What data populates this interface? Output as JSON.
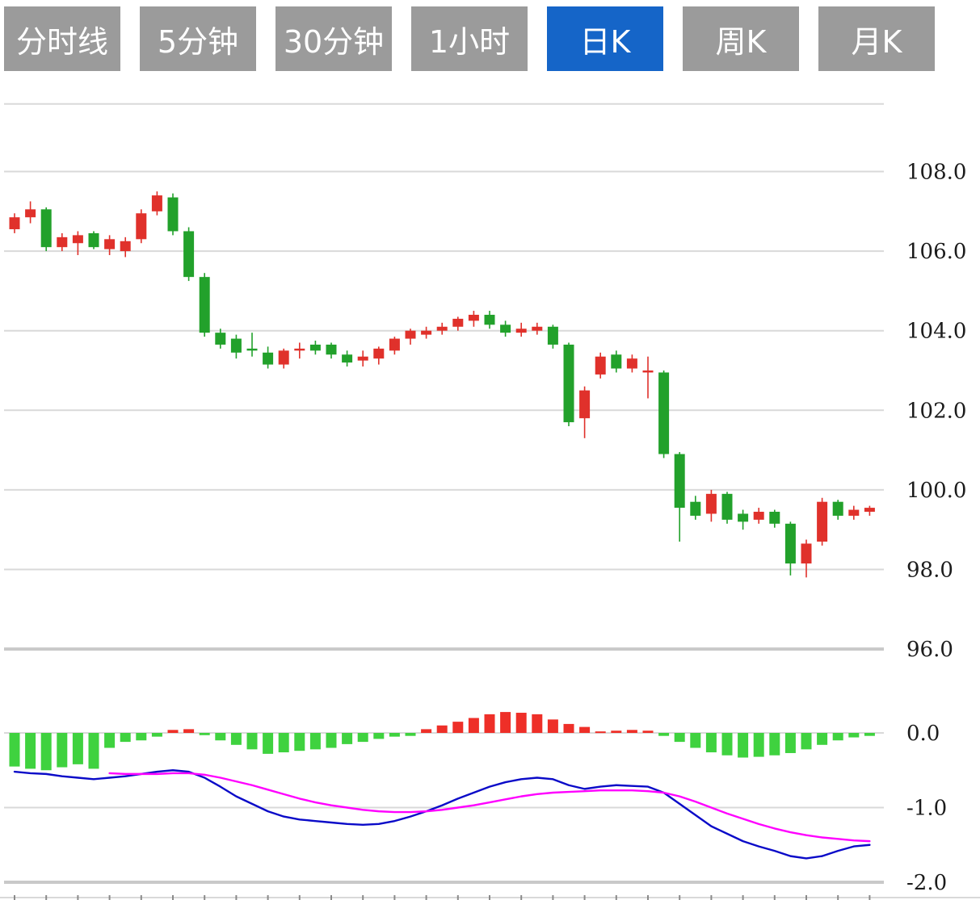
{
  "tabs": [
    {
      "label": "分时线",
      "active": false
    },
    {
      "label": "5分钟",
      "active": false
    },
    {
      "label": "30分钟",
      "active": false
    },
    {
      "label": "1小时",
      "active": false
    },
    {
      "label": "日K",
      "active": true
    },
    {
      "label": "周K",
      "active": false
    },
    {
      "label": "月K",
      "active": false
    }
  ],
  "colors": {
    "background": "#ffffff",
    "tab_bg": "#9b9b9b",
    "tab_active_bg": "#1565c8",
    "tab_text": "#ffffff",
    "candle_up": "#e0312b",
    "candle_down": "#22a12b",
    "hist_up": "#ee2f28",
    "hist_down": "#3fd23f",
    "dif_line": "#0a0ac8",
    "dea_line": "#ff00ff",
    "grid": "#d9d9d9",
    "grid_major": "#c9c9c9",
    "axis_text": "#1b1b1b"
  },
  "chart_data": {
    "type": "candlestick+macd",
    "note": "Chinese convention: red = up candle, green = down candle",
    "price_panel": {
      "yticks": [
        108.0,
        106.0,
        104.0,
        102.0,
        100.0,
        98.0,
        96.0
      ],
      "ylim": [
        95.4,
        109.7
      ],
      "candles_ohlc": [
        [
          106.55,
          106.95,
          106.45,
          106.85
        ],
        [
          106.85,
          107.25,
          106.7,
          107.05
        ],
        [
          107.05,
          107.1,
          106.0,
          106.1
        ],
        [
          106.1,
          106.45,
          106.0,
          106.35
        ],
        [
          106.2,
          106.5,
          105.9,
          106.4
        ],
        [
          106.45,
          106.5,
          106.05,
          106.1
        ],
        [
          106.05,
          106.4,
          105.9,
          106.3
        ],
        [
          106.0,
          106.35,
          105.85,
          106.25
        ],
        [
          106.3,
          107.05,
          106.2,
          106.95
        ],
        [
          107.0,
          107.5,
          106.9,
          107.4
        ],
        [
          107.35,
          107.45,
          106.4,
          106.5
        ],
        [
          106.5,
          106.6,
          105.25,
          105.35
        ],
        [
          105.35,
          105.45,
          103.85,
          103.95
        ],
        [
          103.95,
          104.05,
          103.55,
          103.65
        ],
        [
          103.8,
          103.9,
          103.3,
          103.45
        ],
        [
          103.55,
          103.95,
          103.35,
          103.5
        ],
        [
          103.45,
          103.6,
          103.05,
          103.15
        ],
        [
          103.15,
          103.55,
          103.05,
          103.5
        ],
        [
          103.5,
          103.7,
          103.3,
          103.55
        ],
        [
          103.65,
          103.75,
          103.4,
          103.5
        ],
        [
          103.65,
          103.7,
          103.3,
          103.4
        ],
        [
          103.4,
          103.5,
          103.1,
          103.2
        ],
        [
          103.25,
          103.5,
          103.1,
          103.35
        ],
        [
          103.3,
          103.6,
          103.15,
          103.55
        ],
        [
          103.5,
          103.85,
          103.4,
          103.8
        ],
        [
          103.8,
          104.05,
          103.65,
          104.0
        ],
        [
          103.9,
          104.1,
          103.8,
          104.0
        ],
        [
          104.0,
          104.2,
          103.9,
          104.1
        ],
        [
          104.1,
          104.35,
          104.0,
          104.3
        ],
        [
          104.25,
          104.5,
          104.1,
          104.4
        ],
        [
          104.4,
          104.5,
          104.05,
          104.15
        ],
        [
          104.15,
          104.25,
          103.85,
          103.95
        ],
        [
          103.95,
          104.2,
          103.85,
          104.05
        ],
        [
          104.0,
          104.2,
          103.9,
          104.1
        ],
        [
          104.1,
          104.15,
          103.55,
          103.65
        ],
        [
          103.65,
          103.7,
          101.6,
          101.7
        ],
        [
          101.8,
          102.6,
          101.3,
          102.5
        ],
        [
          102.9,
          103.45,
          102.8,
          103.35
        ],
        [
          103.4,
          103.5,
          102.95,
          103.05
        ],
        [
          103.05,
          103.4,
          102.95,
          103.3
        ],
        [
          102.95,
          103.35,
          102.3,
          103.0
        ],
        [
          102.95,
          103.0,
          100.8,
          100.9
        ],
        [
          100.9,
          100.95,
          98.7,
          99.55
        ],
        [
          99.7,
          99.85,
          99.25,
          99.35
        ],
        [
          99.4,
          100.0,
          99.2,
          99.9
        ],
        [
          99.9,
          99.95,
          99.15,
          99.25
        ],
        [
          99.4,
          99.5,
          99.0,
          99.2
        ],
        [
          99.25,
          99.55,
          99.15,
          99.45
        ],
        [
          99.45,
          99.5,
          99.05,
          99.15
        ],
        [
          99.15,
          99.2,
          97.85,
          98.15
        ],
        [
          98.15,
          98.75,
          97.8,
          98.65
        ],
        [
          98.7,
          99.8,
          98.6,
          99.7
        ],
        [
          99.7,
          99.75,
          99.25,
          99.35
        ],
        [
          99.35,
          99.6,
          99.25,
          99.5
        ],
        [
          99.45,
          99.6,
          99.35,
          99.55
        ]
      ]
    },
    "macd_panel": {
      "yticks": [
        0.0,
        -1.0,
        -2.0
      ],
      "ylim": [
        -2.2,
        0.35
      ],
      "histogram": [
        -0.45,
        -0.48,
        -0.5,
        -0.46,
        -0.42,
        -0.48,
        -0.2,
        -0.12,
        -0.1,
        -0.05,
        0.04,
        0.05,
        -0.03,
        -0.1,
        -0.16,
        -0.22,
        -0.28,
        -0.26,
        -0.24,
        -0.22,
        -0.2,
        -0.15,
        -0.12,
        -0.08,
        -0.05,
        -0.04,
        0.05,
        0.1,
        0.15,
        0.2,
        0.25,
        0.28,
        0.27,
        0.25,
        0.18,
        0.12,
        0.08,
        0.02,
        0.03,
        0.04,
        0.03,
        -0.04,
        -0.12,
        -0.2,
        -0.26,
        -0.3,
        -0.33,
        -0.32,
        -0.3,
        -0.27,
        -0.22,
        -0.16,
        -0.1,
        -0.06,
        -0.04
      ],
      "dif": [
        -0.52,
        -0.54,
        -0.55,
        -0.58,
        -0.6,
        -0.62,
        -0.6,
        -0.58,
        -0.55,
        -0.52,
        -0.5,
        -0.52,
        -0.6,
        -0.72,
        -0.85,
        -0.95,
        -1.05,
        -1.12,
        -1.16,
        -1.18,
        -1.2,
        -1.22,
        -1.23,
        -1.22,
        -1.18,
        -1.12,
        -1.05,
        -0.97,
        -0.88,
        -0.8,
        -0.72,
        -0.66,
        -0.62,
        -0.6,
        -0.62,
        -0.7,
        -0.75,
        -0.72,
        -0.7,
        -0.71,
        -0.72,
        -0.8,
        -0.95,
        -1.1,
        -1.25,
        -1.35,
        -1.45,
        -1.52,
        -1.58,
        -1.65,
        -1.68,
        -1.65,
        -1.58,
        -1.52,
        -1.5
      ],
      "dea": [
        null,
        null,
        null,
        null,
        null,
        null,
        -0.54,
        -0.55,
        -0.55,
        -0.55,
        -0.54,
        -0.54,
        -0.56,
        -0.6,
        -0.65,
        -0.7,
        -0.76,
        -0.82,
        -0.88,
        -0.93,
        -0.97,
        -1.0,
        -1.03,
        -1.05,
        -1.06,
        -1.06,
        -1.05,
        -1.03,
        -1.0,
        -0.97,
        -0.93,
        -0.89,
        -0.85,
        -0.82,
        -0.8,
        -0.79,
        -0.78,
        -0.77,
        -0.77,
        -0.77,
        -0.78,
        -0.8,
        -0.85,
        -0.92,
        -1.0,
        -1.08,
        -1.15,
        -1.22,
        -1.28,
        -1.33,
        -1.37,
        -1.4,
        -1.42,
        -1.44,
        -1.45
      ]
    }
  }
}
